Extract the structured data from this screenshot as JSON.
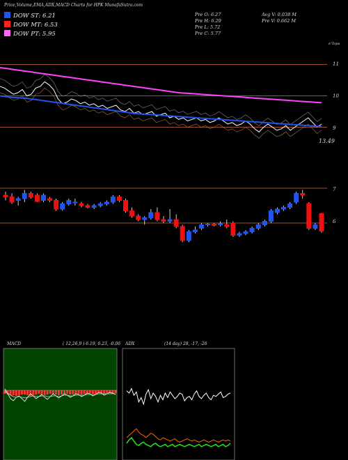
{
  "title": "Price,Volume,EMA,ADX,MACD Charts for HPK MunafaSutra.com",
  "legend": [
    {
      "label": "DOW ST: 6.21",
      "color": "#2255ee"
    },
    {
      "label": "DOW MT: 6.53",
      "color": "#ff2020"
    },
    {
      "label": "DOW PT: 5.95",
      "color": "#ff66ff"
    }
  ],
  "stats": {
    "open": "Pre  O: 6.27",
    "high": "Pre  H: 6.29",
    "low": "Pre  L: 5.72",
    "close": "Pre  C: 5.77",
    "avg_vol": "Avg V: 0.038  M",
    "pre_vol": "Pre  V: 0.662  M"
  },
  "colors": {
    "bg": "#000000",
    "up": "#2255ee",
    "down": "#ee1111",
    "ref": "#a0522d",
    "ema": "#ff44ff"
  },
  "chart_data": [
    {
      "type": "line",
      "name": "price-ema-panel",
      "y_ticks": [
        "11",
        "10",
        "9"
      ],
      "y_tick_values": [
        11,
        10,
        9
      ],
      "ylim": [
        8.5,
        11.5
      ],
      "last_value_label": "13.49",
      "corner_label": "e'Topa",
      "series": [
        {
          "name": "close",
          "values": [
            10.3,
            10.25,
            10.15,
            10.05,
            10.1,
            10.2,
            10.0,
            10.05,
            10.25,
            10.3,
            10.45,
            10.35,
            10.2,
            9.9,
            9.75,
            9.8,
            9.9,
            9.85,
            9.75,
            9.8,
            9.7,
            9.75,
            9.65,
            9.7,
            9.6,
            9.65,
            9.7,
            9.55,
            9.5,
            9.6,
            9.45,
            9.5,
            9.4,
            9.45,
            9.5,
            9.35,
            9.4,
            9.45,
            9.3,
            9.35,
            9.25,
            9.3,
            9.2,
            9.25,
            9.3,
            9.2,
            9.25,
            9.15,
            9.2,
            9.3,
            9.2,
            9.1,
            9.15,
            9.05,
            9.1,
            9.2,
            9.1,
            8.95,
            8.85,
            9.0,
            9.1,
            9.0,
            8.9,
            8.95,
            9.05,
            8.9,
            9.0,
            9.1,
            9.2,
            9.3,
            9.15,
            9.0,
            9.1
          ]
        },
        {
          "name": "ema-fast",
          "values": [
            10.0,
            9.98,
            9.96,
            9.95,
            9.94,
            9.93,
            9.92,
            9.9,
            9.88,
            9.86,
            9.84,
            9.82,
            9.8,
            9.78,
            9.76,
            9.74,
            9.72,
            9.7,
            9.68,
            9.66,
            9.64,
            9.62,
            9.6,
            9.58,
            9.56,
            9.54,
            9.52,
            9.5,
            9.48,
            9.46,
            9.44,
            9.43,
            9.42,
            9.41,
            9.4,
            9.39,
            9.38,
            9.37,
            9.36,
            9.35,
            9.34,
            9.33,
            9.32,
            9.31,
            9.3,
            9.29,
            9.28,
            9.27,
            9.26,
            9.25,
            9.24,
            9.23,
            9.22,
            9.21,
            9.2,
            9.19,
            9.18,
            9.17,
            9.16,
            9.15,
            9.14,
            9.13,
            9.12,
            9.11,
            9.1,
            9.09,
            9.08,
            9.07,
            9.06,
            9.05,
            9.04,
            9.03,
            9.02
          ]
        },
        {
          "name": "ema-slow",
          "values": [
            10.9,
            10.88,
            10.86,
            10.84,
            10.82,
            10.8,
            10.78,
            10.76,
            10.74,
            10.72,
            10.7,
            10.68,
            10.66,
            10.64,
            10.62,
            10.6,
            10.58,
            10.56,
            10.54,
            10.52,
            10.5,
            10.48,
            10.46,
            10.44,
            10.42,
            10.4,
            10.38,
            10.36,
            10.34,
            10.32,
            10.3,
            10.28,
            10.26,
            10.24,
            10.22,
            10.2,
            10.18,
            10.16,
            10.14,
            10.12,
            10.1,
            10.09,
            10.08,
            10.07,
            10.06,
            10.05,
            10.04,
            10.03,
            10.02,
            10.01,
            10.0,
            9.99,
            9.98,
            9.97,
            9.96,
            9.95,
            9.94,
            9.93,
            9.92,
            9.91,
            9.9,
            9.89,
            9.88,
            9.87,
            9.86,
            9.85,
            9.84,
            9.83,
            9.82,
            9.81,
            9.8,
            9.79,
            9.78
          ]
        }
      ]
    },
    {
      "type": "candlestick",
      "name": "daily-candles",
      "y_ticks": [
        "7",
        "6"
      ],
      "y_tick_values": [
        7,
        6
      ],
      "ylim": [
        5.2,
        7.6
      ],
      "ohlc": [
        [
          6.8,
          6.9,
          6.65,
          6.75
        ],
        [
          6.75,
          6.85,
          6.55,
          6.6
        ],
        [
          6.65,
          6.75,
          6.5,
          6.7
        ],
        [
          6.7,
          6.95,
          6.6,
          6.85
        ],
        [
          6.85,
          6.9,
          6.7,
          6.75
        ],
        [
          6.8,
          6.85,
          6.6,
          6.62
        ],
        [
          6.65,
          6.85,
          6.6,
          6.8
        ],
        [
          6.7,
          6.75,
          6.6,
          6.65
        ],
        [
          6.65,
          6.7,
          6.35,
          6.4
        ],
        [
          6.4,
          6.6,
          6.35,
          6.55
        ],
        [
          6.55,
          6.7,
          6.5,
          6.65
        ],
        [
          6.6,
          6.7,
          6.5,
          6.6
        ],
        [
          6.55,
          6.6,
          6.45,
          6.5
        ],
        [
          6.5,
          6.55,
          6.42,
          6.45
        ],
        [
          6.45,
          6.55,
          6.4,
          6.5
        ],
        [
          6.5,
          6.6,
          6.45,
          6.55
        ],
        [
          6.55,
          6.65,
          6.5,
          6.6
        ],
        [
          6.6,
          6.8,
          6.55,
          6.75
        ],
        [
          6.75,
          6.8,
          6.6,
          6.65
        ],
        [
          6.65,
          6.7,
          6.3,
          6.35
        ],
        [
          6.35,
          6.45,
          6.15,
          6.2
        ],
        [
          6.2,
          6.25,
          6.05,
          6.1
        ],
        [
          6.1,
          6.2,
          5.95,
          6.15
        ],
        [
          6.15,
          6.4,
          6.1,
          6.3
        ],
        [
          6.3,
          6.45,
          6.05,
          6.1
        ],
        [
          6.1,
          6.2,
          6.0,
          6.05
        ],
        [
          6.05,
          6.4,
          6.0,
          6.1
        ],
        [
          6.1,
          6.25,
          5.85,
          5.9
        ],
        [
          5.9,
          5.95,
          5.45,
          5.5
        ],
        [
          5.5,
          5.8,
          5.45,
          5.75
        ],
        [
          5.75,
          5.9,
          5.7,
          5.8
        ],
        [
          5.85,
          6.0,
          5.8,
          5.95
        ],
        [
          5.95,
          6.0,
          5.9,
          5.97
        ],
        [
          5.97,
          6.0,
          5.9,
          5.93
        ],
        [
          5.95,
          6.05,
          5.9,
          5.98
        ],
        [
          5.95,
          6.1,
          5.85,
          5.9
        ],
        [
          6.0,
          6.05,
          5.6,
          5.65
        ],
        [
          5.65,
          5.75,
          5.6,
          5.7
        ],
        [
          5.7,
          5.8,
          5.65,
          5.75
        ],
        [
          5.75,
          5.9,
          5.7,
          5.85
        ],
        [
          5.85,
          6.0,
          5.8,
          5.95
        ],
        [
          5.95,
          6.1,
          5.9,
          6.05
        ],
        [
          6.05,
          6.4,
          6.0,
          6.35
        ],
        [
          6.3,
          6.45,
          6.25,
          6.4
        ],
        [
          6.4,
          6.5,
          6.35,
          6.45
        ],
        [
          6.45,
          6.6,
          6.4,
          6.55
        ],
        [
          6.6,
          6.9,
          6.55,
          6.85
        ],
        [
          6.85,
          6.95,
          6.7,
          6.8
        ],
        [
          6.55,
          6.6,
          5.8,
          5.85
        ],
        [
          5.85,
          6.0,
          5.8,
          5.95
        ],
        [
          6.27,
          6.29,
          5.72,
          5.77
        ]
      ],
      "ref_lines": [
        7.0,
        6.0
      ]
    },
    {
      "type": "line",
      "name": "macd",
      "label": "MACD",
      "params": "( 12,26,9 ) 6.19, 6.23, -0.06",
      "histogram": [
        -0.05,
        -0.06,
        -0.07,
        -0.07,
        -0.08,
        -0.07,
        -0.06,
        -0.06,
        -0.07,
        -0.08,
        -0.07,
        -0.06,
        -0.05,
        -0.06,
        -0.07,
        -0.06,
        -0.05,
        -0.05,
        -0.06,
        -0.07,
        -0.06,
        -0.05,
        -0.05,
        -0.06,
        -0.06,
        -0.05,
        -0.05,
        -0.06,
        -0.05,
        -0.05,
        -0.04,
        -0.05,
        -0.05,
        -0.04,
        -0.04,
        -0.05,
        -0.04,
        -0.04,
        -0.05,
        -0.04
      ],
      "series": [
        {
          "name": "macd",
          "values": [
            0.02,
            -0.05,
            -0.12,
            -0.15,
            -0.1,
            -0.08,
            -0.12,
            -0.16,
            -0.1,
            -0.05,
            -0.08,
            -0.12,
            -0.09,
            -0.06,
            -0.1,
            -0.13,
            -0.09,
            -0.05,
            -0.08,
            -0.11,
            -0.08,
            -0.05,
            -0.07,
            -0.1,
            -0.08,
            -0.05,
            -0.06,
            -0.09,
            -0.07,
            -0.04,
            -0.05,
            -0.08,
            -0.06,
            -0.03,
            -0.04,
            -0.07,
            -0.05,
            -0.03,
            -0.04,
            -0.06
          ]
        },
        {
          "name": "signal",
          "values": [
            -0.02,
            -0.04,
            -0.07,
            -0.09,
            -0.1,
            -0.09,
            -0.1,
            -0.11,
            -0.1,
            -0.09,
            -0.08,
            -0.09,
            -0.09,
            -0.08,
            -0.08,
            -0.09,
            -0.09,
            -0.08,
            -0.08,
            -0.09,
            -0.08,
            -0.07,
            -0.07,
            -0.08,
            -0.08,
            -0.07,
            -0.07,
            -0.07,
            -0.07,
            -0.06,
            -0.06,
            -0.06,
            -0.06,
            -0.05,
            -0.05,
            -0.05,
            -0.05,
            -0.05,
            -0.05,
            -0.05
          ]
        }
      ],
      "ylim": [
        -1.0,
        0.6
      ]
    },
    {
      "type": "line",
      "name": "adx",
      "label": "ADX",
      "params": "(14  day) 28, -17, -26",
      "series": [
        {
          "name": "plus-di",
          "values": [
            62,
            60,
            64,
            58,
            61,
            52,
            56,
            50,
            59,
            63,
            55,
            60,
            57,
            52,
            58,
            54,
            60,
            56,
            61,
            58,
            55,
            57,
            60,
            59,
            53,
            56,
            57,
            54,
            59,
            62,
            57,
            55,
            58,
            60,
            56,
            54,
            58,
            57,
            59,
            61,
            56,
            57,
            59,
            60
          ]
        },
        {
          "name": "minus-di",
          "values": [
            20,
            22,
            24,
            26,
            28,
            25,
            23,
            22,
            20,
            22,
            24,
            23,
            21,
            19,
            18,
            20,
            19,
            18,
            17,
            18,
            19,
            17,
            16,
            17,
            18,
            19,
            18,
            17,
            18,
            17,
            16,
            17,
            18,
            17,
            16,
            17,
            18,
            17,
            16,
            17,
            18,
            17,
            18,
            17
          ]
        },
        {
          "name": "adx",
          "values": [
            15,
            18,
            20,
            17,
            14,
            13,
            15,
            16,
            14,
            13,
            12,
            14,
            15,
            13,
            12,
            13,
            14,
            12,
            13,
            14,
            12,
            13,
            14,
            13,
            12,
            13,
            14,
            13,
            12,
            13,
            14,
            12,
            13,
            14,
            13,
            12,
            13,
            14,
            12,
            13,
            14,
            12,
            13,
            15
          ]
        }
      ],
      "ylim": [
        0,
        100
      ]
    }
  ]
}
